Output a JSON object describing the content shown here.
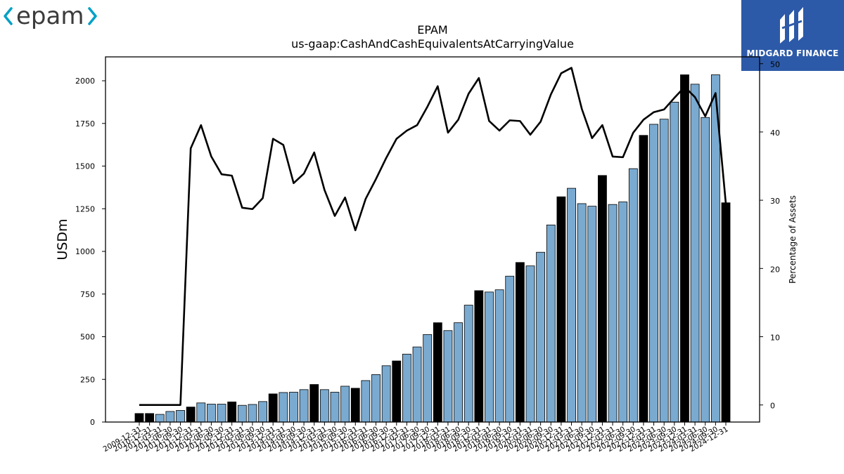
{
  "logos": {
    "left_text": "epam",
    "right_text": "MIDGARD FINANCE",
    "right_bg": "#2d5aa8"
  },
  "chart_data": {
    "type": "bar",
    "title": "EPAM",
    "subtitle": "us-gaap:CashAndCashEquivalentsAtCarryingValue",
    "ylabel": "USDm",
    "ylabel_right": "Percentage of Assets",
    "ylim": [
      0,
      2140
    ],
    "ylim_right": [
      -2.5,
      51
    ],
    "yticks": [
      0,
      250,
      500,
      750,
      1000,
      1250,
      1500,
      1750,
      2000
    ],
    "yticks_right": [
      0,
      10,
      20,
      30,
      40,
      50
    ],
    "grid": false,
    "colors": {
      "annual": "#000000",
      "quarterly": "#7aaad0",
      "line": "#000000"
    },
    "categories": [
      "2009-12-31",
      "2010-12-31",
      "2011-03-31",
      "2011-06-30",
      "2011-09-30",
      "2011-12-31",
      "2012-03-31",
      "2012-06-30",
      "2012-09-30",
      "2012-12-31",
      "2013-03-31",
      "2013-06-30",
      "2013-09-30",
      "2013-12-31",
      "2014-03-31",
      "2014-06-30",
      "2014-09-30",
      "2014-12-31",
      "2015-03-31",
      "2015-06-30",
      "2015-09-30",
      "2015-12-31",
      "2016-03-31",
      "2016-06-30",
      "2016-09-30",
      "2016-12-31",
      "2017-03-31",
      "2017-06-30",
      "2017-09-30",
      "2017-12-31",
      "2018-03-31",
      "2018-06-30",
      "2018-09-30",
      "2018-12-31",
      "2019-03-31",
      "2019-06-30",
      "2019-09-30",
      "2019-12-31",
      "2020-03-31",
      "2020-06-30",
      "2020-09-30",
      "2020-12-31",
      "2021-03-31",
      "2021-06-30",
      "2021-09-30",
      "2021-12-31",
      "2022-03-31",
      "2022-06-30",
      "2022-09-30",
      "2022-12-31",
      "2023-03-31",
      "2023-06-30",
      "2023-09-30",
      "2023-12-31",
      "2024-03-31",
      "2024-06-30",
      "2024-09-30",
      "2024-12-31"
    ],
    "series": [
      {
        "type": "bar",
        "values": [
          50,
          50,
          45,
          62,
          68,
          88,
          112,
          105,
          105,
          118,
          98,
          103,
          120,
          165,
          173,
          175,
          190,
          220,
          190,
          175,
          210,
          198,
          243,
          278,
          330,
          358,
          398,
          440,
          513,
          582,
          536,
          582,
          685,
          770,
          762,
          775,
          855,
          935,
          915,
          995,
          1155,
          1320,
          1370,
          1280,
          1265,
          1445,
          1275,
          1290,
          1485,
          1680,
          1745,
          1775,
          1875,
          2035,
          1980,
          1785,
          2035,
          1285
        ],
        "annual": [
          true,
          true,
          false,
          false,
          false,
          true,
          false,
          false,
          false,
          true,
          false,
          false,
          false,
          true,
          false,
          false,
          false,
          true,
          false,
          false,
          false,
          true,
          false,
          false,
          false,
          true,
          false,
          false,
          false,
          true,
          false,
          false,
          false,
          true,
          false,
          false,
          false,
          true,
          false,
          false,
          false,
          true,
          false,
          false,
          false,
          true,
          false,
          false,
          false,
          true,
          false,
          false,
          false,
          true,
          false,
          false,
          false,
          true
        ]
      },
      {
        "name": "Percentage of Assets",
        "type": "line",
        "axis": "right",
        "values": [
          0,
          0,
          0,
          0,
          0,
          37.6,
          41,
          36.4,
          33.8,
          33.6,
          28.9,
          28.7,
          30.3,
          39,
          38.1,
          32.5,
          33.9,
          37,
          31.5,
          27.7,
          30.4,
          25.6,
          30.2,
          33.1,
          36.2,
          39,
          40.2,
          41,
          43.7,
          46.7,
          39.9,
          41.8,
          45.6,
          47.9,
          41.6,
          40.2,
          41.7,
          41.6,
          39.6,
          41.5,
          45.5,
          48.6,
          49.4,
          43.4,
          39.1,
          41,
          36.4,
          36.3,
          39.9,
          41.8,
          42.9,
          43.3,
          45,
          46.6,
          45.1,
          42.3,
          45.7,
          29.5
        ]
      }
    ]
  }
}
